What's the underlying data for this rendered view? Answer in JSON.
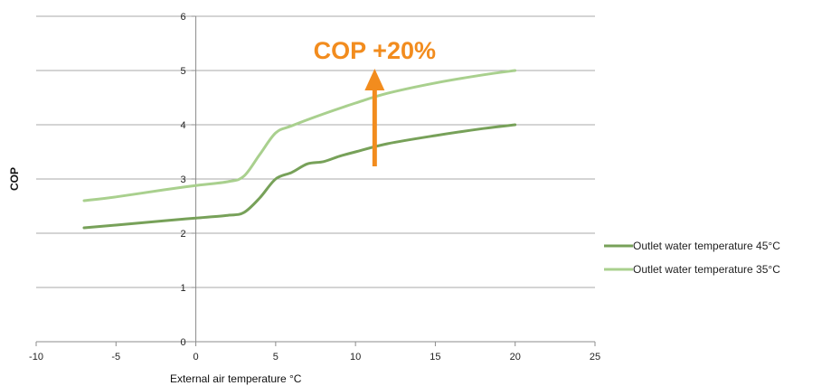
{
  "chart_data": {
    "type": "line",
    "xlabel": "External air temperature °C",
    "ylabel": "COP",
    "xlim": [
      -10,
      25
    ],
    "ylim": [
      0,
      6
    ],
    "x_ticks": [
      -10,
      -5,
      0,
      5,
      10,
      15,
      20,
      25
    ],
    "y_ticks": [
      0,
      1,
      2,
      3,
      4,
      5,
      6
    ],
    "grid": "horizontal",
    "legend_position": "right",
    "series": [
      {
        "name": "Outlet water temperature 45°C",
        "color": "#77a159",
        "x": [
          -7,
          -5,
          -2,
          0,
          2,
          3,
          4,
          5,
          6,
          7,
          8,
          9,
          10,
          12,
          15,
          18,
          20
        ],
        "y": [
          2.1,
          2.15,
          2.23,
          2.28,
          2.33,
          2.38,
          2.65,
          3.0,
          3.12,
          3.28,
          3.32,
          3.42,
          3.5,
          3.65,
          3.8,
          3.93,
          4.0
        ]
      },
      {
        "name": "Outlet water temperature 35°C",
        "color": "#a9d08e",
        "x": [
          -7,
          -5,
          -2,
          0,
          2,
          3,
          4,
          5,
          6,
          8,
          10,
          12,
          15,
          18,
          20
        ],
        "y": [
          2.6,
          2.67,
          2.8,
          2.88,
          2.95,
          3.05,
          3.45,
          3.85,
          3.98,
          4.2,
          4.4,
          4.58,
          4.77,
          4.92,
          5.0
        ]
      }
    ],
    "annotations": [
      {
        "text": "COP +20%",
        "color": "#f28c1e",
        "arrow_x": 11.2,
        "arrow_from": 3.2,
        "arrow_to": 5.0
      }
    ]
  }
}
